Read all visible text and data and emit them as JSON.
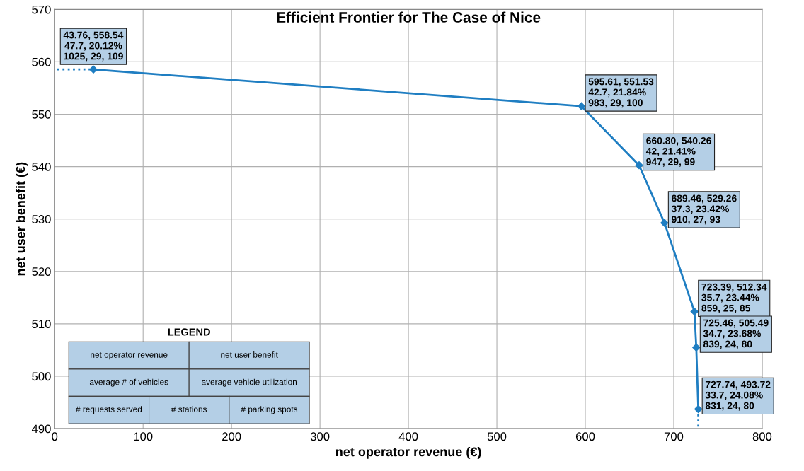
{
  "chart_data": {
    "type": "line",
    "title": "Efficient Frontier for The Case of Nice",
    "xlabel": "net operator revenue (€)",
    "ylabel": "net user benefit (€)",
    "xlim": [
      0,
      800
    ],
    "ylim": [
      490,
      570
    ],
    "xticks": [
      0,
      100,
      200,
      300,
      400,
      500,
      600,
      700,
      800
    ],
    "yticks": [
      490,
      500,
      510,
      520,
      530,
      540,
      550,
      560,
      570
    ],
    "grid": true,
    "series": [
      {
        "color": "#1f7ec2",
        "marker": "diamond",
        "line_style": "solid",
        "x": [
          43.76,
          595.61,
          660.8,
          689.46,
          723.39,
          725.46,
          727.74
        ],
        "values": [
          558.54,
          551.53,
          540.26,
          529.26,
          512.34,
          505.49,
          493.72
        ]
      },
      {
        "color": "#1f7ec2",
        "marker": "none",
        "line_style": "dotted",
        "x": [
          3,
          43.76
        ],
        "values": [
          558.54,
          558.54
        ]
      },
      {
        "color": "#1f7ec2",
        "marker": "none",
        "line_style": "dotted",
        "x": [
          727.74,
          727.74
        ],
        "values": [
          493.72,
          490
        ]
      }
    ],
    "annotations": [
      {
        "text": "43.76, 558.54\n47.7, 20.12%\n1025, 29, 109",
        "x": 43.76,
        "y": 558.54
      },
      {
        "text": "595.61, 551.53\n42.7, 21.84%\n983, 29, 100",
        "x": 595.61,
        "y": 551.53
      },
      {
        "text": "660.80, 540.26\n42, 21.41%\n947, 29, 99",
        "x": 660.8,
        "y": 540.26
      },
      {
        "text": "689.46, 529.26\n37.3, 23.42%\n910, 27, 93",
        "x": 689.46,
        "y": 529.26
      },
      {
        "text": "723.39, 512.34\n35.7, 23.44%\n859, 25, 85",
        "x": 723.39,
        "y": 512.34
      },
      {
        "text": "725.46, 505.49\n34.7, 23.68%\n839, 24, 80",
        "x": 725.46,
        "y": 505.49
      },
      {
        "text": "727.74, 493.72\n33.7, 24.08%\n831, 24, 80",
        "x": 727.74,
        "y": 493.72
      },
      "LEGEND",
      "net operator revenue",
      "net user benefit",
      "average # of vehicles",
      "average vehicle utilization",
      "# requests served",
      "# stations",
      "# parking spots"
    ]
  }
}
